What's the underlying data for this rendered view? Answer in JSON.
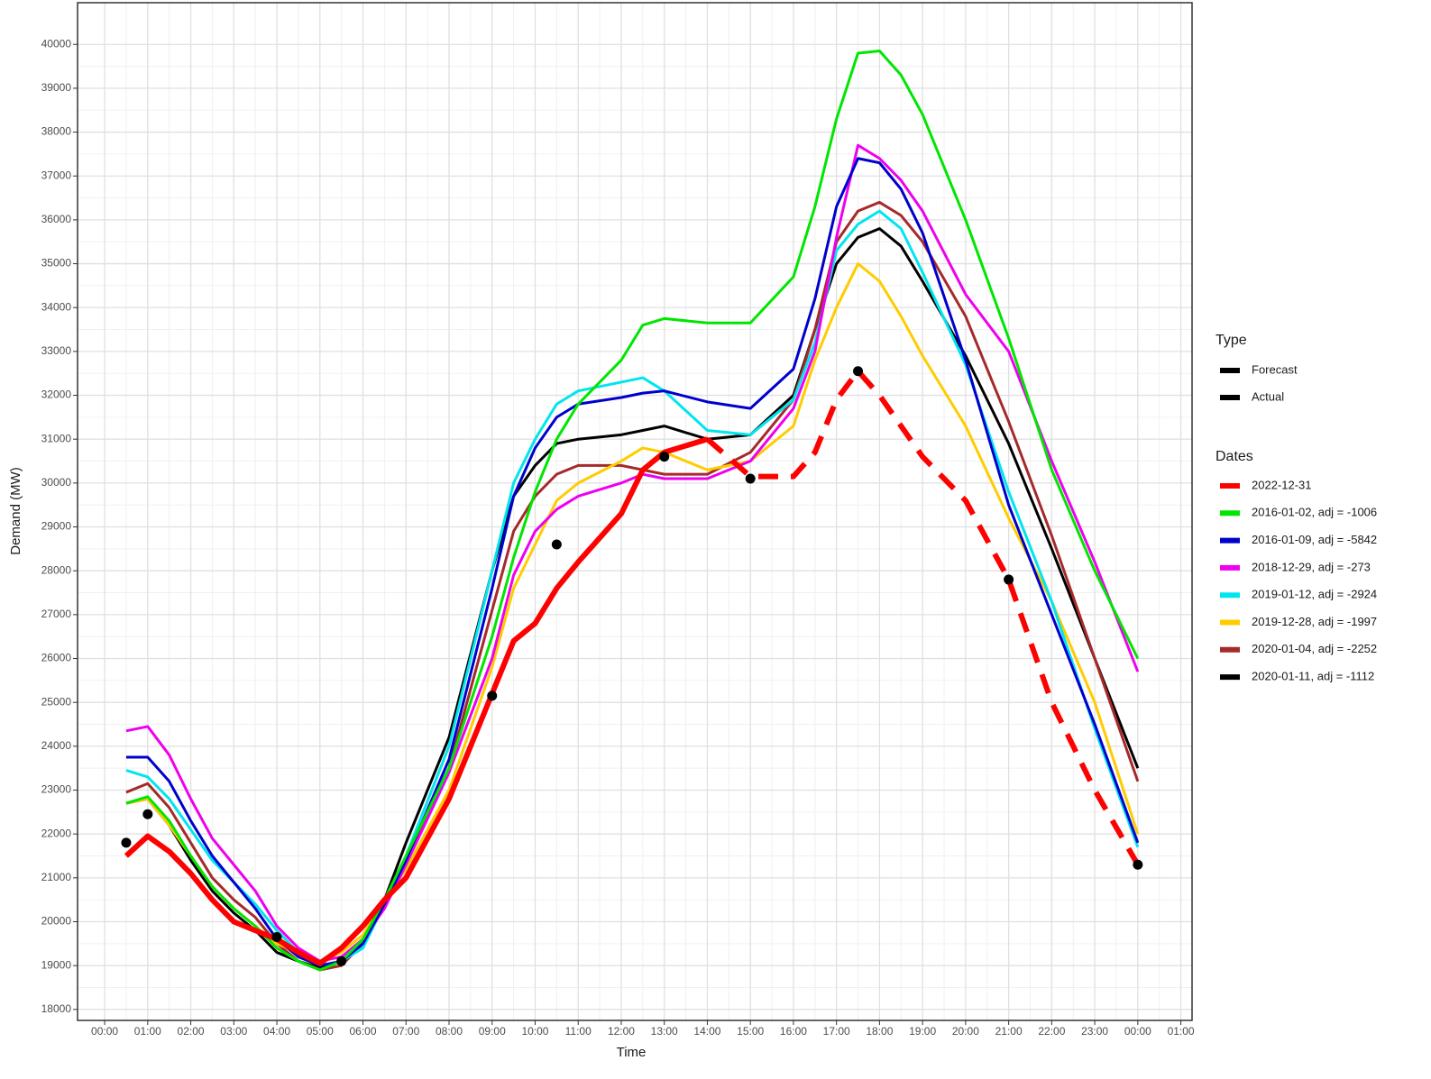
{
  "chart_data": {
    "type": "line",
    "xlabel": "Time",
    "ylabel": "Demand (MW)",
    "xlim": [
      -0.63,
      25.26
    ],
    "ylim": [
      17750,
      40950
    ],
    "grid": true,
    "minor_grid": true,
    "xticks": [
      {
        "value": 0,
        "label": "00:00"
      },
      {
        "value": 1,
        "label": "01:00"
      },
      {
        "value": 2,
        "label": "02:00"
      },
      {
        "value": 3,
        "label": "03:00"
      },
      {
        "value": 4,
        "label": "04:00"
      },
      {
        "value": 5,
        "label": "05:00"
      },
      {
        "value": 6,
        "label": "06:00"
      },
      {
        "value": 7,
        "label": "07:00"
      },
      {
        "value": 8,
        "label": "08:00"
      },
      {
        "value": 9,
        "label": "09:00"
      },
      {
        "value": 10,
        "label": "10:00"
      },
      {
        "value": 11,
        "label": "11:00"
      },
      {
        "value": 12,
        "label": "12:00"
      },
      {
        "value": 13,
        "label": "13:00"
      },
      {
        "value": 14,
        "label": "14:00"
      },
      {
        "value": 15,
        "label": "15:00"
      },
      {
        "value": 16,
        "label": "16:00"
      },
      {
        "value": 17,
        "label": "17:00"
      },
      {
        "value": 18,
        "label": "18:00"
      },
      {
        "value": 19,
        "label": "19:00"
      },
      {
        "value": 20,
        "label": "20:00"
      },
      {
        "value": 21,
        "label": "21:00"
      },
      {
        "value": 22,
        "label": "22:00"
      },
      {
        "value": 23,
        "label": "23:00"
      },
      {
        "value": 24,
        "label": "00:00"
      },
      {
        "value": 25,
        "label": "01:00"
      }
    ],
    "yticks": [
      18000,
      19000,
      20000,
      21000,
      22000,
      23000,
      24000,
      25000,
      26000,
      27000,
      28000,
      29000,
      30000,
      31000,
      32000,
      33000,
      34000,
      35000,
      36000,
      37000,
      38000,
      39000,
      40000
    ],
    "x": [
      0.5,
      1,
      1.5,
      2,
      2.5,
      3,
      3.5,
      4,
      4.5,
      5,
      5.5,
      6,
      6.5,
      7,
      8,
      9,
      9.5,
      10,
      10.5,
      11,
      12,
      12.5,
      13,
      14,
      15,
      16,
      16.5,
      17,
      17.5,
      18,
      18.5,
      19,
      20,
      21,
      22,
      23,
      24
    ],
    "type_legend": {
      "title": "Type",
      "entries": [
        {
          "name": "Forecast",
          "linetype": "solid"
        },
        {
          "name": "Actual",
          "linetype": "solid"
        }
      ]
    },
    "dates_legend_title": "Dates",
    "series": [
      {
        "name": "2022-12-31",
        "color": "#ff0000",
        "width": 6,
        "values": [
          21500,
          21950,
          21600,
          21100,
          20500,
          20000,
          19800,
          19600,
          19300,
          19050,
          19400,
          19900,
          20500,
          21000,
          22800,
          25200,
          26400,
          26800,
          27600,
          28200,
          29300,
          30300,
          30700,
          31000,
          null,
          null,
          null,
          null,
          null,
          null,
          null,
          null,
          null,
          null,
          null,
          null,
          null
        ],
        "forecast_values": [
          null,
          null,
          null,
          null,
          null,
          null,
          null,
          null,
          null,
          null,
          null,
          null,
          null,
          null,
          null,
          null,
          null,
          null,
          null,
          null,
          null,
          null,
          null,
          31000,
          30150,
          30150,
          30700,
          31900,
          32550,
          32000,
          31300,
          30600,
          29600,
          27800,
          25000,
          23000,
          21300
        ]
      },
      {
        "name": "2016-01-02, adj = -1006",
        "color": "#00e600",
        "width": 3,
        "values": [
          22700,
          22850,
          22300,
          21500,
          20800,
          20300,
          19900,
          19400,
          19100,
          18900,
          19100,
          19600,
          20500,
          21500,
          23500,
          26500,
          28300,
          29800,
          31000,
          31800,
          32800,
          33600,
          33750,
          33650,
          33650,
          34700,
          36300,
          38300,
          39800,
          39850,
          39300,
          38400,
          36000,
          33300,
          30300,
          28000,
          26000
        ]
      },
      {
        "name": "2016-01-09, adj = -5842",
        "color": "#0000cc",
        "width": 3,
        "values": [
          23750,
          23750,
          23200,
          22300,
          21500,
          20900,
          20300,
          19600,
          19200,
          19000,
          19100,
          19500,
          20400,
          21400,
          23700,
          27600,
          29700,
          30800,
          31500,
          31800,
          31950,
          32050,
          32100,
          31850,
          31700,
          32600,
          34200,
          36300,
          37400,
          37300,
          36700,
          35700,
          32800,
          29500,
          27000,
          24500,
          21800
        ]
      },
      {
        "name": "2018-12-29, adj = -273",
        "color": "#ee00ee",
        "width": 3,
        "values": [
          24350,
          24450,
          23800,
          22800,
          21900,
          21300,
          20700,
          19900,
          19400,
          19100,
          19200,
          19600,
          20300,
          21300,
          23400,
          26000,
          27900,
          28900,
          29400,
          29700,
          30000,
          30200,
          30100,
          30100,
          30500,
          31700,
          33000,
          35600,
          37700,
          37400,
          36900,
          36200,
          34300,
          33000,
          30500,
          28200,
          25700
        ]
      },
      {
        "name": "2019-01-12, adj = -2924",
        "color": "#00e5ee",
        "width": 3,
        "values": [
          23450,
          23300,
          22800,
          22100,
          21400,
          20900,
          20400,
          19800,
          19300,
          19000,
          19100,
          19400,
          20400,
          21500,
          24000,
          28000,
          30000,
          31000,
          31800,
          32100,
          32300,
          32400,
          32100,
          31200,
          31100,
          31900,
          33200,
          35300,
          35900,
          36200,
          35800,
          34800,
          32700,
          29800,
          27300,
          24400,
          21700
        ]
      },
      {
        "name": "2019-12-28, adj = -1997",
        "color": "#ffcc00",
        "width": 3,
        "values": [
          22700,
          22800,
          22200,
          21500,
          20800,
          20300,
          19900,
          19500,
          19300,
          19100,
          19300,
          19700,
          20500,
          21200,
          23000,
          25800,
          27600,
          28600,
          29600,
          30000,
          30500,
          30800,
          30700,
          30300,
          30500,
          31300,
          32800,
          34000,
          35000,
          34600,
          33800,
          32900,
          31300,
          29200,
          27300,
          25000,
          22000
        ]
      },
      {
        "name": "2020-01-04, adj = -2252",
        "color": "#a52a2a",
        "width": 3,
        "values": [
          22950,
          23150,
          22600,
          21800,
          21000,
          20500,
          20100,
          19500,
          19100,
          18900,
          19000,
          19500,
          20400,
          21400,
          23500,
          27100,
          28900,
          29700,
          30200,
          30400,
          30400,
          30300,
          30200,
          30200,
          30700,
          31900,
          33500,
          35500,
          36200,
          36400,
          36100,
          35500,
          33800,
          31400,
          28800,
          26000,
          23200
        ]
      },
      {
        "name": "2020-01-11, adj = -1112",
        "color": "#000000",
        "width": 3,
        "values": [
          22700,
          22800,
          22200,
          21400,
          20700,
          20200,
          19800,
          19300,
          19100,
          18950,
          19100,
          19600,
          20500,
          21800,
          24200,
          28000,
          29700,
          30400,
          30900,
          31000,
          31100,
          31200,
          31300,
          31000,
          31100,
          32000,
          33500,
          35000,
          35600,
          35800,
          35400,
          34600,
          32900,
          30900,
          28500,
          26000,
          23500
        ]
      }
    ],
    "points": {
      "color": "#000000",
      "x": [
        0.5,
        1,
        4,
        5.5,
        9,
        10.5,
        13,
        15,
        17.5,
        21,
        24
      ],
      "values": [
        21800,
        22450,
        19650,
        19100,
        25150,
        28600,
        30600,
        30100,
        32550,
        27800,
        21300
      ]
    }
  }
}
